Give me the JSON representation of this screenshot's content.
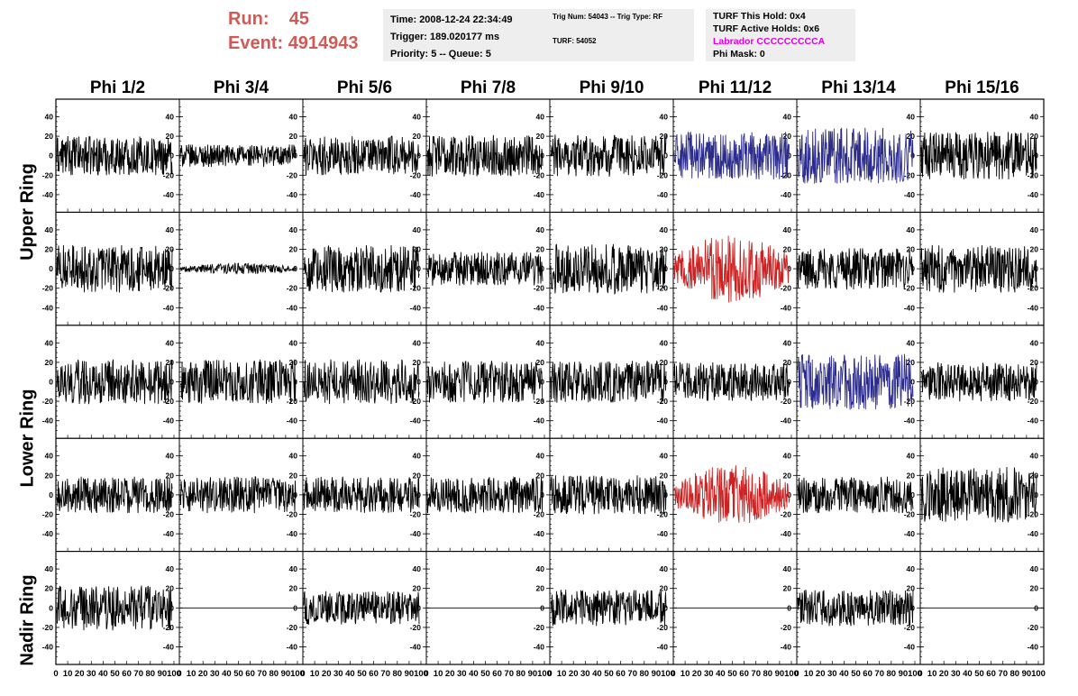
{
  "header": {
    "run_label": "Run:",
    "run_value": "45",
    "event_label": "Event:",
    "event_value": "4914943",
    "time": "Time: 2008-12-24 22:34:49",
    "trigger": "Trigger: 189.020177 ms",
    "priority": "Priority: 5 -- Queue: 5",
    "trig_num": "Trig Num: 54043 -- Trig Type: RF",
    "turf": "TURF: 54052",
    "turf_this_hold": "TURF This Hold: 0x4",
    "turf_active_holds": "TURF Active Holds: 0x6",
    "labrador": "Labrador CCCCCCCCCA",
    "phi_mask": "Phi Mask: 0"
  },
  "phi_columns": [
    "Phi 1/2",
    "Phi 3/4",
    "Phi 5/6",
    "Phi 7/8",
    "Phi 9/10",
    "Phi 11/12",
    "Phi 13/14",
    "Phi 15/16"
  ],
  "ring_labels": [
    "Upper Ring",
    "Lower Ring",
    "Nadir Ring"
  ],
  "y_ticks": [
    "40",
    "20",
    "0",
    "-20",
    "-40"
  ],
  "x_ticks": [
    "0",
    "10",
    "20",
    "30",
    "40",
    "50",
    "60",
    "70",
    "80",
    "90",
    "100"
  ],
  "colors": {
    "run_text": "#d25a55",
    "labrador_text": "#e000e0",
    "info_bg": "#eeeeee",
    "trace_default": "#000000",
    "trace_blue": "#2c2c8c",
    "trace_red": "#cc2222"
  },
  "panels": [
    [
      {
        "amp": 14,
        "color": "black"
      },
      {
        "amp": 8,
        "color": "black"
      },
      {
        "amp": 14,
        "color": "black"
      },
      {
        "amp": 15,
        "color": "black"
      },
      {
        "amp": 15,
        "color": "black"
      },
      {
        "amp": 17,
        "color": "blue"
      },
      {
        "amp": 20,
        "color": "blue"
      },
      {
        "amp": 17,
        "color": "black"
      }
    ],
    [
      {
        "amp": 17,
        "color": "black"
      },
      {
        "amp": 3,
        "color": "black"
      },
      {
        "amp": 17,
        "color": "black"
      },
      {
        "amp": 12,
        "color": "black"
      },
      {
        "amp": 18,
        "color": "black"
      },
      {
        "amp": 18,
        "color": "red"
      },
      {
        "amp": 15,
        "color": "black"
      },
      {
        "amp": 17,
        "color": "black"
      }
    ],
    [
      {
        "amp": 16,
        "color": "black"
      },
      {
        "amp": 16,
        "color": "black"
      },
      {
        "amp": 16,
        "color": "black"
      },
      {
        "amp": 15,
        "color": "black"
      },
      {
        "amp": 15,
        "color": "black"
      },
      {
        "amp": 14,
        "color": "black"
      },
      {
        "amp": 20,
        "color": "blue"
      },
      {
        "amp": 14,
        "color": "black"
      }
    ],
    [
      {
        "amp": 13,
        "color": "black"
      },
      {
        "amp": 13,
        "color": "black"
      },
      {
        "amp": 13,
        "color": "black"
      },
      {
        "amp": 13,
        "color": "black"
      },
      {
        "amp": 14,
        "color": "black"
      },
      {
        "amp": 16,
        "color": "red"
      },
      {
        "amp": 13,
        "color": "black"
      },
      {
        "amp": 20,
        "color": "black"
      }
    ],
    [
      {
        "amp": 16,
        "color": "black"
      },
      {
        "amp": 0,
        "color": "black"
      },
      {
        "amp": 12,
        "color": "black"
      },
      {
        "amp": 0,
        "color": "black"
      },
      {
        "amp": 13,
        "color": "black"
      },
      {
        "amp": 0,
        "color": "black"
      },
      {
        "amp": 13,
        "color": "black"
      },
      {
        "amp": 0,
        "color": "black"
      }
    ]
  ]
}
